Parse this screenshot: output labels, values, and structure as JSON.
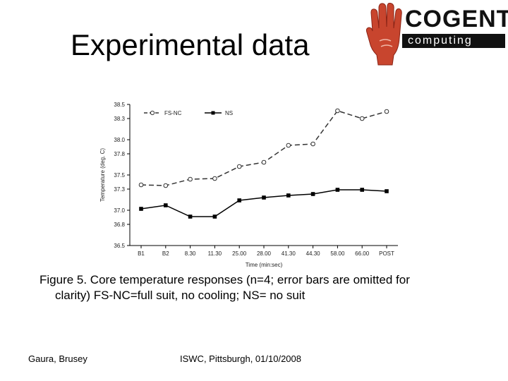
{
  "slide": {
    "title": "Experimental data",
    "caption_line1": "Figure 5. Core temperature responses (n=4; error bars are omitted for",
    "caption_line2": "clarity) FS-NC=full suit, no cooling; NS= no suit",
    "footer_left": "Gaura, Brusey",
    "footer_center": "ISWC, Pittsburgh, 01/10/2008"
  },
  "logo": {
    "word": "COGENT",
    "sub": "computing",
    "colors": {
      "hand": "#c8452e",
      "text": "#111111"
    }
  },
  "chart_data": {
    "type": "line",
    "categories": [
      "B1",
      "B2",
      "8.30",
      "11.30",
      "25.00",
      "28.00",
      "41.30",
      "44.30",
      "58.00",
      "66.00",
      "POST"
    ],
    "series": [
      {
        "name": "FS-NC",
        "values": [
          37.36,
          37.35,
          37.44,
          37.45,
          37.62,
          37.68,
          37.92,
          37.94,
          38.41,
          38.3,
          38.4
        ],
        "style": "dashed",
        "marker": "open-circle",
        "color": "#333333"
      },
      {
        "name": "NS",
        "values": [
          37.02,
          37.07,
          36.91,
          36.91,
          37.14,
          37.18,
          37.21,
          37.23,
          37.29,
          37.29,
          37.27
        ],
        "style": "solid",
        "marker": "filled-square",
        "color": "#000000"
      }
    ],
    "yticks": [
      "36.5",
      "36.8",
      "37.0",
      "37.3",
      "37.5",
      "37.8",
      "38.0",
      "38.3",
      "38.5"
    ],
    "ylim": [
      36.5,
      38.5
    ],
    "xlabel": "Time (min:sec)",
    "ylabel": "Temperature (deg. C)",
    "legend_position": "top-left",
    "grid": false
  }
}
